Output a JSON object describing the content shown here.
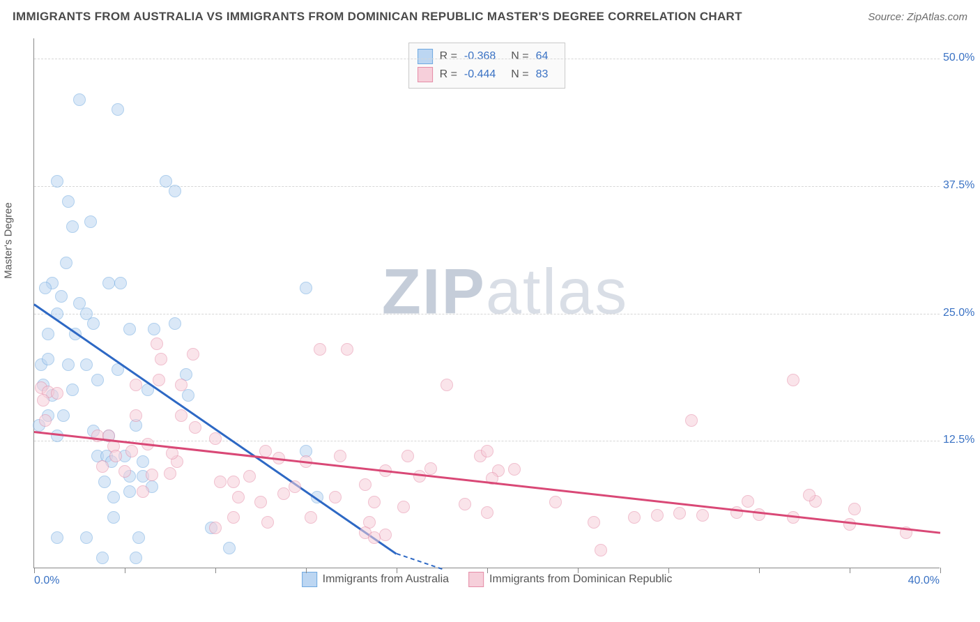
{
  "title": "IMMIGRANTS FROM AUSTRALIA VS IMMIGRANTS FROM DOMINICAN REPUBLIC MASTER'S DEGREE CORRELATION CHART",
  "source_label": "Source:",
  "source_name": "ZipAtlas.com",
  "y_axis_title": "Master's Degree",
  "watermark_a": "ZIP",
  "watermark_b": "atlas",
  "xlim": [
    0,
    40
  ],
  "ylim": [
    0,
    52
  ],
  "x_label_min": "0.0%",
  "x_label_max": "40.0%",
  "x_ticks": [
    0,
    4,
    8,
    12,
    16,
    20,
    24,
    28,
    32,
    36,
    40
  ],
  "y_gridlines": [
    {
      "v": 12.5,
      "label": "12.5%"
    },
    {
      "v": 25.0,
      "label": "25.0%"
    },
    {
      "v": 37.5,
      "label": "37.5%"
    },
    {
      "v": 50.0,
      "label": "50.0%"
    }
  ],
  "series": [
    {
      "name": "Immigrants from Australia",
      "fill": "#bcd6f2",
      "stroke": "#6ea8e0",
      "line_color": "#2d68c4",
      "R": "-0.368",
      "N": "64",
      "trend": {
        "x1": 0,
        "y1": 26,
        "x2": 16,
        "y2": 1.5,
        "dash_to_x": 18
      },
      "points": [
        [
          2,
          46
        ],
        [
          3.7,
          45
        ],
        [
          1,
          38
        ],
        [
          1.5,
          36
        ],
        [
          5.8,
          38
        ],
        [
          6.2,
          37
        ],
        [
          1.7,
          33.5
        ],
        [
          2.5,
          34
        ],
        [
          1.4,
          30
        ],
        [
          0.8,
          28
        ],
        [
          1.2,
          26.7
        ],
        [
          0.5,
          27.5
        ],
        [
          1,
          25
        ],
        [
          2,
          26
        ],
        [
          2.3,
          25
        ],
        [
          3.3,
          28
        ],
        [
          3.8,
          28
        ],
        [
          0.6,
          23
        ],
        [
          1.8,
          23
        ],
        [
          2.6,
          24
        ],
        [
          4.2,
          23.5
        ],
        [
          5.3,
          23.5
        ],
        [
          6.2,
          24
        ],
        [
          12,
          27.5
        ],
        [
          0.3,
          20
        ],
        [
          0.6,
          20.5
        ],
        [
          1.5,
          20
        ],
        [
          2.3,
          20
        ],
        [
          2.8,
          18.5
        ],
        [
          3.7,
          19.5
        ],
        [
          1.7,
          17.5
        ],
        [
          0.4,
          18
        ],
        [
          0.8,
          17
        ],
        [
          0.2,
          14.0
        ],
        [
          0.6,
          15
        ],
        [
          1.3,
          15
        ],
        [
          4.5,
          14
        ],
        [
          5.0,
          17.5
        ],
        [
          6.8,
          17
        ],
        [
          6.7,
          19
        ],
        [
          2.6,
          13.5
        ],
        [
          3.3,
          13
        ],
        [
          1.0,
          13
        ],
        [
          2.8,
          11
        ],
        [
          3.2,
          11
        ],
        [
          3.4,
          10.5
        ],
        [
          4.0,
          11
        ],
        [
          4.2,
          9
        ],
        [
          4.8,
          9
        ],
        [
          4.8,
          10.5
        ],
        [
          12,
          11.5
        ],
        [
          3.1,
          8.5
        ],
        [
          3.5,
          7
        ],
        [
          4.2,
          7.5
        ],
        [
          5.2,
          8
        ],
        [
          12.5,
          7
        ],
        [
          3.5,
          5
        ],
        [
          7.8,
          4
        ],
        [
          4.6,
          3
        ],
        [
          2.3,
          3
        ],
        [
          1.0,
          3
        ],
        [
          3.0,
          1
        ],
        [
          4.5,
          1
        ],
        [
          8.6,
          2
        ]
      ]
    },
    {
      "name": "Immigrants from Dominican Republic",
      "fill": "#f6cfda",
      "stroke": "#e58ca7",
      "line_color": "#d94876",
      "R": "-0.444",
      "N": "83",
      "trend": {
        "x1": 0,
        "y1": 13.5,
        "x2": 40,
        "y2": 3.6
      },
      "points": [
        [
          5.4,
          22
        ],
        [
          5.6,
          20.5
        ],
        [
          7,
          21
        ],
        [
          12.6,
          21.5
        ],
        [
          13.8,
          21.5
        ],
        [
          0.3,
          17.7
        ],
        [
          0.6,
          17.3
        ],
        [
          1.0,
          17.2
        ],
        [
          0.4,
          16.5
        ],
        [
          4.5,
          18
        ],
        [
          5.5,
          18.5
        ],
        [
          6.5,
          18
        ],
        [
          18.2,
          18
        ],
        [
          33.5,
          18.5
        ],
        [
          0.5,
          14.5
        ],
        [
          4.5,
          15
        ],
        [
          6.5,
          15
        ],
        [
          7.1,
          13.8
        ],
        [
          8.0,
          12.7
        ],
        [
          29,
          14.5
        ],
        [
          2.8,
          13
        ],
        [
          3.3,
          13
        ],
        [
          3.5,
          12
        ],
        [
          5.0,
          12.2
        ],
        [
          3.6,
          11
        ],
        [
          4.3,
          11.5
        ],
        [
          6.3,
          10.5
        ],
        [
          6.1,
          11.3
        ],
        [
          10.2,
          11.5
        ],
        [
          10.8,
          10.8
        ],
        [
          12,
          10.5
        ],
        [
          13.5,
          11
        ],
        [
          16.5,
          11
        ],
        [
          19.7,
          11
        ],
        [
          17,
          9.0
        ],
        [
          17.5,
          9.8
        ],
        [
          3.0,
          10
        ],
        [
          4.0,
          9.5
        ],
        [
          5.2,
          9.2
        ],
        [
          6.0,
          9.3
        ],
        [
          8.2,
          8.5
        ],
        [
          8.8,
          8.5
        ],
        [
          9.5,
          9
        ],
        [
          11.5,
          8
        ],
        [
          14.6,
          8.2
        ],
        [
          15.5,
          9.6
        ],
        [
          20.5,
          9.6
        ],
        [
          20.2,
          8.8
        ],
        [
          4.8,
          7.5
        ],
        [
          9.0,
          7
        ],
        [
          10.0,
          6.5
        ],
        [
          11.0,
          7.3
        ],
        [
          13.3,
          7
        ],
        [
          15.0,
          6.5
        ],
        [
          16.3,
          6
        ],
        [
          19.0,
          6.3
        ],
        [
          20.0,
          5.5
        ],
        [
          23.0,
          6.5
        ],
        [
          24.7,
          4.5
        ],
        [
          26.5,
          5.0
        ],
        [
          27.5,
          5.2
        ],
        [
          28.5,
          5.4
        ],
        [
          29.5,
          5.2
        ],
        [
          31.0,
          5.5
        ],
        [
          32.0,
          5.3
        ],
        [
          31.5,
          6.6
        ],
        [
          34.5,
          6.6
        ],
        [
          33.5,
          5.0
        ],
        [
          36.2,
          5.8
        ],
        [
          36.0,
          4.3
        ],
        [
          38.5,
          3.5
        ],
        [
          25.0,
          1.8
        ],
        [
          14.8,
          4.5
        ],
        [
          14.6,
          3.5
        ],
        [
          15.5,
          3.3
        ],
        [
          10.3,
          4.5
        ],
        [
          12.2,
          5.0
        ],
        [
          8.0,
          4.0
        ],
        [
          8.8,
          5.0
        ],
        [
          34.2,
          7.2
        ],
        [
          15.0,
          3.0
        ],
        [
          21.2,
          9.7
        ],
        [
          20.0,
          11.5
        ]
      ]
    }
  ],
  "legend_R_label": "R =",
  "legend_N_label": "N ="
}
